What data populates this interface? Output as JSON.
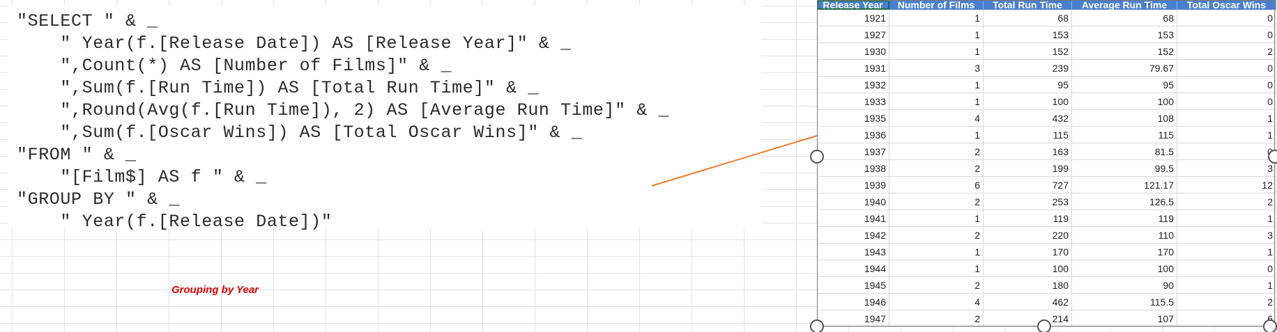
{
  "code_lines": [
    "\"SELECT \" & _",
    "    \" Year(f.[Release Date]) AS [Release Year]\" & _",
    "    \",Count(*) AS [Number of Films]\" & _",
    "    \",Sum(f.[Run Time]) AS [Total Run Time]\" & _",
    "    \",Round(Avg(f.[Run Time]), 2) AS [Average Run Time]\" & _",
    "    \",Sum(f.[Oscar Wins]) AS [Total Oscar Wins]\" & _",
    "\"FROM \" & _",
    "    \"[Film$] AS f \" & _",
    "\"GROUP BY \" & _",
    "    \" Year(f.[Release Date])\""
  ],
  "caption": "Grouping by Year",
  "arrow_color": "#f07a2a",
  "table": {
    "headers": [
      "Release Year",
      "Number of Films",
      "Total Run Time",
      "Average Run Time",
      "Total Oscar Wins"
    ],
    "rows": [
      [
        "1921",
        "1",
        "68",
        "68",
        "0"
      ],
      [
        "1927",
        "1",
        "153",
        "153",
        "0"
      ],
      [
        "1930",
        "1",
        "152",
        "152",
        "2"
      ],
      [
        "1931",
        "3",
        "239",
        "79.67",
        "0"
      ],
      [
        "1932",
        "1",
        "95",
        "95",
        "0"
      ],
      [
        "1933",
        "1",
        "100",
        "100",
        "0"
      ],
      [
        "1935",
        "4",
        "432",
        "108",
        "1"
      ],
      [
        "1936",
        "1",
        "115",
        "115",
        "1"
      ],
      [
        "1937",
        "2",
        "163",
        "81.5",
        "0"
      ],
      [
        "1938",
        "2",
        "199",
        "99.5",
        "3"
      ],
      [
        "1939",
        "6",
        "727",
        "121.17",
        "12"
      ],
      [
        "1940",
        "2",
        "253",
        "126.5",
        "2"
      ],
      [
        "1941",
        "1",
        "119",
        "119",
        "1"
      ],
      [
        "1942",
        "2",
        "220",
        "110",
        "3"
      ],
      [
        "1943",
        "1",
        "170",
        "170",
        "1"
      ],
      [
        "1944",
        "1",
        "100",
        "100",
        "0"
      ],
      [
        "1945",
        "2",
        "180",
        "90",
        "1"
      ],
      [
        "1946",
        "4",
        "462",
        "115.5",
        "2"
      ],
      [
        "1947",
        "2",
        "214",
        "107",
        "6"
      ]
    ]
  },
  "colors": {
    "header_bg": "#4a7fd0",
    "caption": "#e00000"
  }
}
